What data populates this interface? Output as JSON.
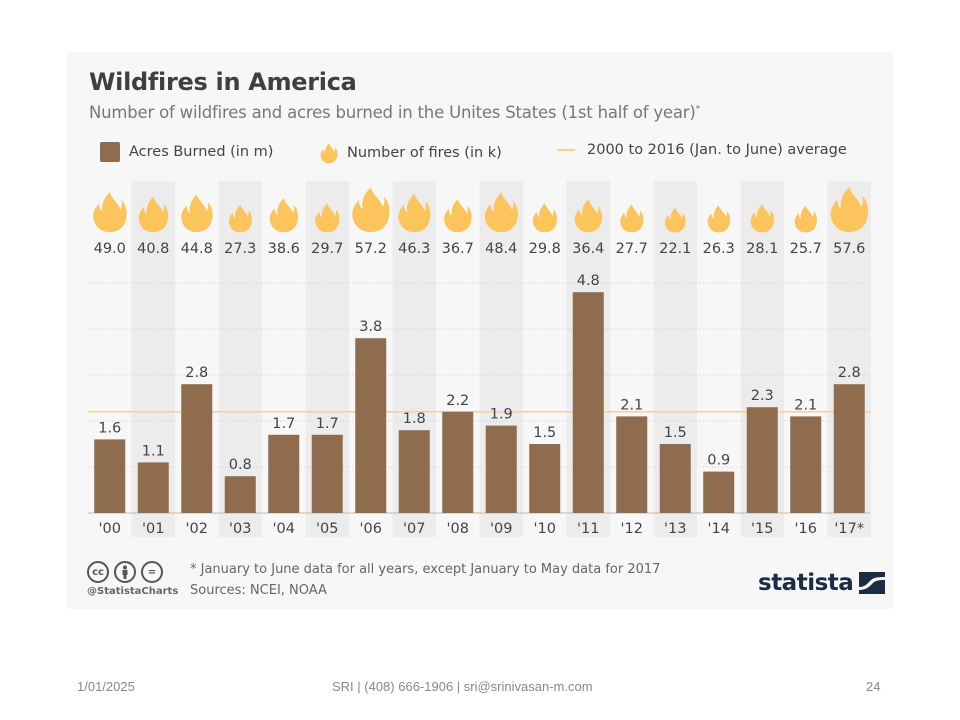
{
  "slide": {
    "footer_date": "1/01/2025",
    "footer_center": "SRI | (408) 666-1906 | sri@srinivasan-m.com",
    "page_number": "24"
  },
  "infographic": {
    "title": "Wildfires in America",
    "subtitle": "Number of wildfires and acres burned in the Unites States (1st half of year)",
    "subtitle_marker": "*",
    "legend": [
      {
        "icon": "brown-square",
        "label": "Acres Burned (in m)"
      },
      {
        "icon": "flame-icon",
        "label": "Number of fires (in k)"
      },
      {
        "icon": "yellow-line",
        "label": "2000 to 2016 (Jan. to June) average"
      }
    ],
    "footnote": "* January to June data for all years, except January to May data for 2017",
    "sources": "Sources: NCEI, NOAA",
    "license_icons": [
      "cc-icon",
      "by-person-icon",
      "nd-equals-icon"
    ],
    "license_icon_text": [
      "cc",
      "",
      "="
    ],
    "handle": "@StatistaCharts",
    "logo_text": "statista"
  },
  "chart_data": {
    "type": "bar",
    "title": "Wildfires in America",
    "subtitle": "Number of wildfires and acres burned in the Unites States (1st half of year)*",
    "categories": [
      "'00",
      "'01",
      "'02",
      "'03",
      "'04",
      "'05",
      "'06",
      "'07",
      "'08",
      "'09",
      "'10",
      "'11",
      "'12",
      "'13",
      "'14",
      "'15",
      "'16",
      "'17*"
    ],
    "series": [
      {
        "name": "Acres Burned (in m)",
        "color": "#8e6c4d",
        "values": [
          1.6,
          1.1,
          2.8,
          0.8,
          1.7,
          1.7,
          3.8,
          1.8,
          2.2,
          1.9,
          1.5,
          4.8,
          2.1,
          1.5,
          0.9,
          2.3,
          2.1,
          2.8
        ]
      },
      {
        "name": "Number of fires (in k)",
        "color": "#fcc45c",
        "marker": "flame-icon",
        "values": [
          49.0,
          40.8,
          44.8,
          27.3,
          38.6,
          29.7,
          57.2,
          46.3,
          36.7,
          48.4,
          29.8,
          36.4,
          27.7,
          22.1,
          26.3,
          28.1,
          25.7,
          57.6
        ]
      }
    ],
    "reference_line": {
      "name": "2000 to 2016 (Jan. to June) average",
      "value": 2.2,
      "color": "#f2d48a"
    },
    "xlabel": "",
    "ylabel": "",
    "ylim": [
      0,
      5
    ],
    "gridlines": [
      1,
      2,
      3,
      4,
      5
    ],
    "grid": true,
    "alternating_bands": true,
    "legend_position": "top-left"
  }
}
